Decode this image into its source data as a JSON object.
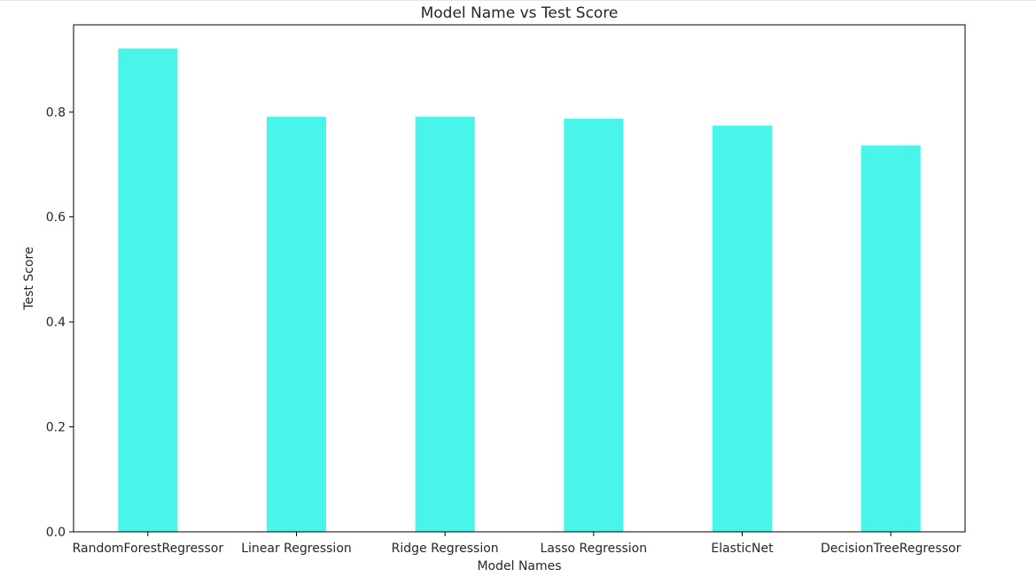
{
  "chart_data": {
    "type": "bar",
    "title": "Model Name vs Test Score",
    "xlabel": "Model Names",
    "ylabel": "Test Score",
    "categories": [
      "RandomForestRegressor",
      "Linear Regression",
      "Ridge Regression",
      "Lasso Regression",
      "ElasticNet",
      "DecisionTreeRegressor"
    ],
    "values": [
      0.921,
      0.791,
      0.791,
      0.787,
      0.774,
      0.736
    ],
    "ylim": [
      0,
      0.966
    ],
    "yticks": [
      0.0,
      0.2,
      0.4,
      0.6,
      0.8
    ],
    "ytick_labels": [
      "0.0",
      "0.2",
      "0.4",
      "0.6",
      "0.8"
    ],
    "bar_color": "#48f5e8",
    "grid": false,
    "legend": "none"
  }
}
